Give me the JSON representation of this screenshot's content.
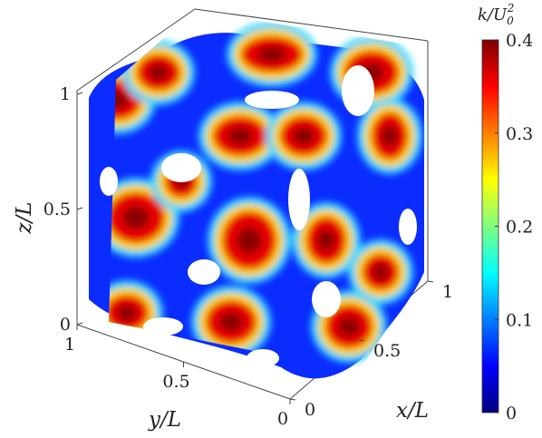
{
  "chart_data": {
    "type": "surface3d",
    "title": "",
    "xlabel": "x/L",
    "ylabel": "y/L",
    "zlabel": "z/L",
    "x_ticks": [
      "0",
      "0.5",
      "1"
    ],
    "y_ticks": [
      "1",
      "0.5",
      "0"
    ],
    "z_ticks": [
      "0",
      "0.5",
      "1"
    ],
    "xlim": [
      0,
      1
    ],
    "ylim": [
      0,
      1
    ],
    "zlim": [
      0,
      1
    ],
    "colorbar": {
      "label_main": "k/U",
      "label_sub": "0",
      "label_sup": "2",
      "range": [
        0,
        0.4
      ],
      "ticks": [
        "0",
        "0.1",
        "0.2",
        "0.3",
        "0.4"
      ],
      "colormap": "jet"
    },
    "jet_stops": [
      "#00007f",
      "#0000ff",
      "#007fff",
      "#00ffff",
      "#7fff7f",
      "#ffff00",
      "#ff7f00",
      "#ff0000",
      "#7f0000"
    ]
  }
}
